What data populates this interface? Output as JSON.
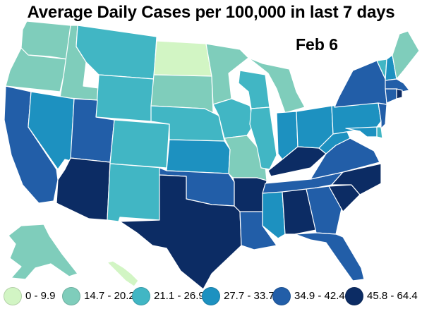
{
  "title": "Average Daily Cases per 100,000 in last 7 days",
  "date": "Feb 6",
  "colors": {
    "bin0": "#d2f5c4",
    "bin1": "#7fcdbb",
    "bin2": "#41b6c4",
    "bin3": "#1d91c0",
    "bin4": "#225ea8",
    "bin5": "#0c2c64"
  },
  "legend": [
    {
      "label": "0 - 9.9",
      "color": "#d2f5c4"
    },
    {
      "label": "14.7 - 20.2",
      "color": "#7fcdbb"
    },
    {
      "label": "21.1 - 26.9",
      "color": "#41b6c4"
    },
    {
      "label": "27.7 - 33.7",
      "color": "#1d91c0"
    },
    {
      "label": "34.9 - 42.4",
      "color": "#225ea8"
    },
    {
      "label": "45.8 - 64.4",
      "color": "#0c2c64"
    }
  ],
  "states": {
    "WA": "bin1",
    "OR": "bin1",
    "CA": "bin4",
    "ID": "bin1",
    "NV": "bin3",
    "MT": "bin2",
    "WY": "bin2",
    "UT": "bin4",
    "AZ": "bin5",
    "CO": "bin2",
    "NM": "bin2",
    "ND": "bin0",
    "SD": "bin1",
    "NE": "bin2",
    "KS": "bin3",
    "OK": "bin4",
    "TX": "bin5",
    "MN": "bin1",
    "IA": "bin2",
    "MO": "bin1",
    "AR": "bin5",
    "LA": "bin4",
    "WI": "bin2",
    "IL": "bin2",
    "MI": "bin1",
    "IN": "bin3",
    "OH": "bin3",
    "KY": "bin5",
    "TN": "bin4",
    "MS": "bin3",
    "AL": "bin5",
    "GA": "bin4",
    "FL": "bin4",
    "SC": "bin5",
    "NC": "bin5",
    "VA": "bin4",
    "WV": "bin3",
    "PA": "bin3",
    "NY": "bin4",
    "VT": "bin2",
    "NH": "bin3",
    "ME": "bin1",
    "MA": "bin4",
    "RI": "bin5",
    "CT": "bin4",
    "NJ": "bin4",
    "DE": "bin2",
    "MD": "bin3",
    "AK": "bin1",
    "HI": "bin0"
  }
}
